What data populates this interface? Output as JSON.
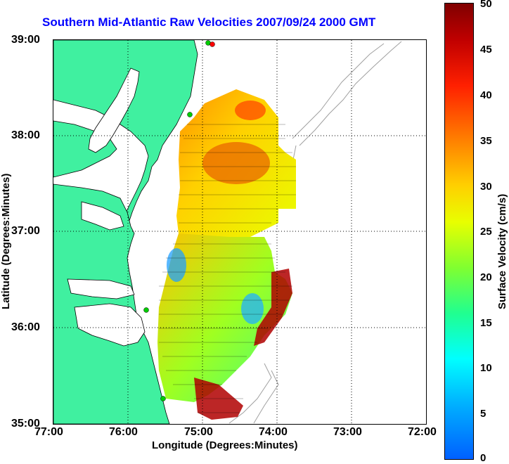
{
  "title": "Southern Mid-Atlantic Raw Velocities 2007/09/24 2000 GMT",
  "axes": {
    "xlabel": "Longitude (Degrees:Minutes)",
    "ylabel": "Latitude (Degrees:Minutes)",
    "x_ticks": [
      "77:00",
      "76:00",
      "75:00",
      "74:00",
      "73:00",
      "72:00"
    ],
    "y_ticks": [
      "39:00",
      "38:00",
      "37:00",
      "36:00",
      "35:00"
    ]
  },
  "colorbar": {
    "title": "Surface Velocity (cm/s)",
    "ticks": [
      "50",
      "45",
      "40",
      "35",
      "30",
      "25",
      "20",
      "15",
      "10",
      "5",
      "0"
    ],
    "min": 0,
    "max": 50
  },
  "colors": {
    "land": "#40f0a0",
    "coastline": "#000000",
    "bathymetry": "#a0a0a0",
    "title": "#0000ff",
    "station_marker": "#00cc00",
    "station_marker_north": "#ff0000"
  }
}
